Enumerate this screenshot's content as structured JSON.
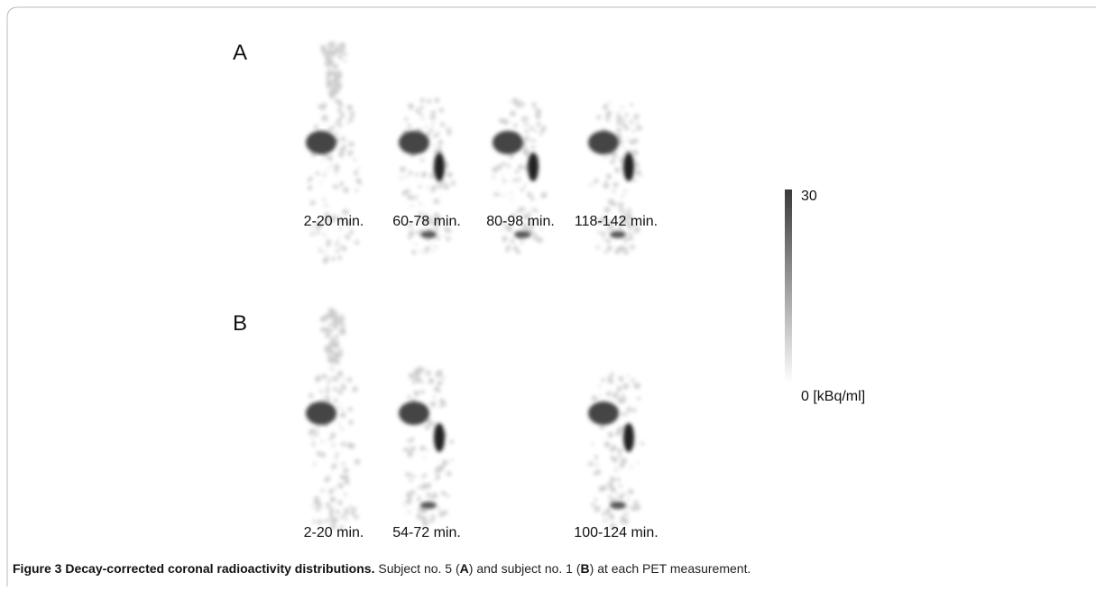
{
  "figure": {
    "panels": [
      {
        "label": "A",
        "frames": [
          "2-20 min.",
          "60-78 min.",
          "80-98 min.",
          "118-142 min."
        ]
      },
      {
        "label": "B",
        "frames": [
          "2-20 min.",
          "54-72 min.",
          "100-124 min."
        ]
      }
    ],
    "colorbar": {
      "max_label": "30",
      "min_label": "0 [kBq/ml]"
    },
    "caption": {
      "figure_label": "Figure 3",
      "title": "Decay-corrected coronal radioactivity distributions.",
      "text_parts": [
        "Subject no. 5 (",
        "A",
        ") and subject no. 1 (",
        "B",
        ") at each PET measurement."
      ]
    }
  }
}
